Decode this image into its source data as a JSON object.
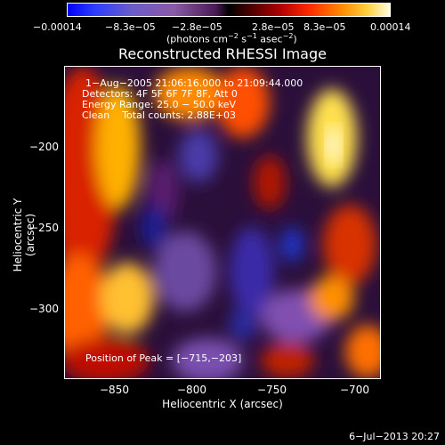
{
  "colorbar": {
    "ticks": [
      "−0.00014",
      "−8.3e−05",
      "−2.8e−05",
      "2.8e−05",
      "8.3e−05",
      "0.00014"
    ],
    "units_main": "(photons cm",
    "units_exp1": "−2",
    "units_mid": " s",
    "units_exp2": "−1",
    "units_tail": " asec",
    "units_exp3": "−2",
    "units_close": ")"
  },
  "title": "Reconstructed RHESSI Image",
  "annotations": {
    "time": "1−Aug−2005 21:06:16.000 to 21:09:44.000",
    "detectors": "Detectors: 4F 5F 6F 7F 8F, Att 0",
    "energy": "Energy Range: 25.0 − 50.0 keV",
    "clean": "Clean    Total counts: 2.88E+03",
    "peak": "Position of Peak = [−715,−203]"
  },
  "axes": {
    "xlabel": "Heliocentric X (arcsec)",
    "ylabel": "Heliocentric Y (arcsec)",
    "xticks": [
      "−850",
      "−800",
      "−750",
      "−700"
    ],
    "yticks": [
      "−200",
      "−250",
      "−300"
    ]
  },
  "timestamp": "6−Jul−2013 20:27",
  "colors": {
    "background": "#000000",
    "foreground": "#ffffff"
  }
}
